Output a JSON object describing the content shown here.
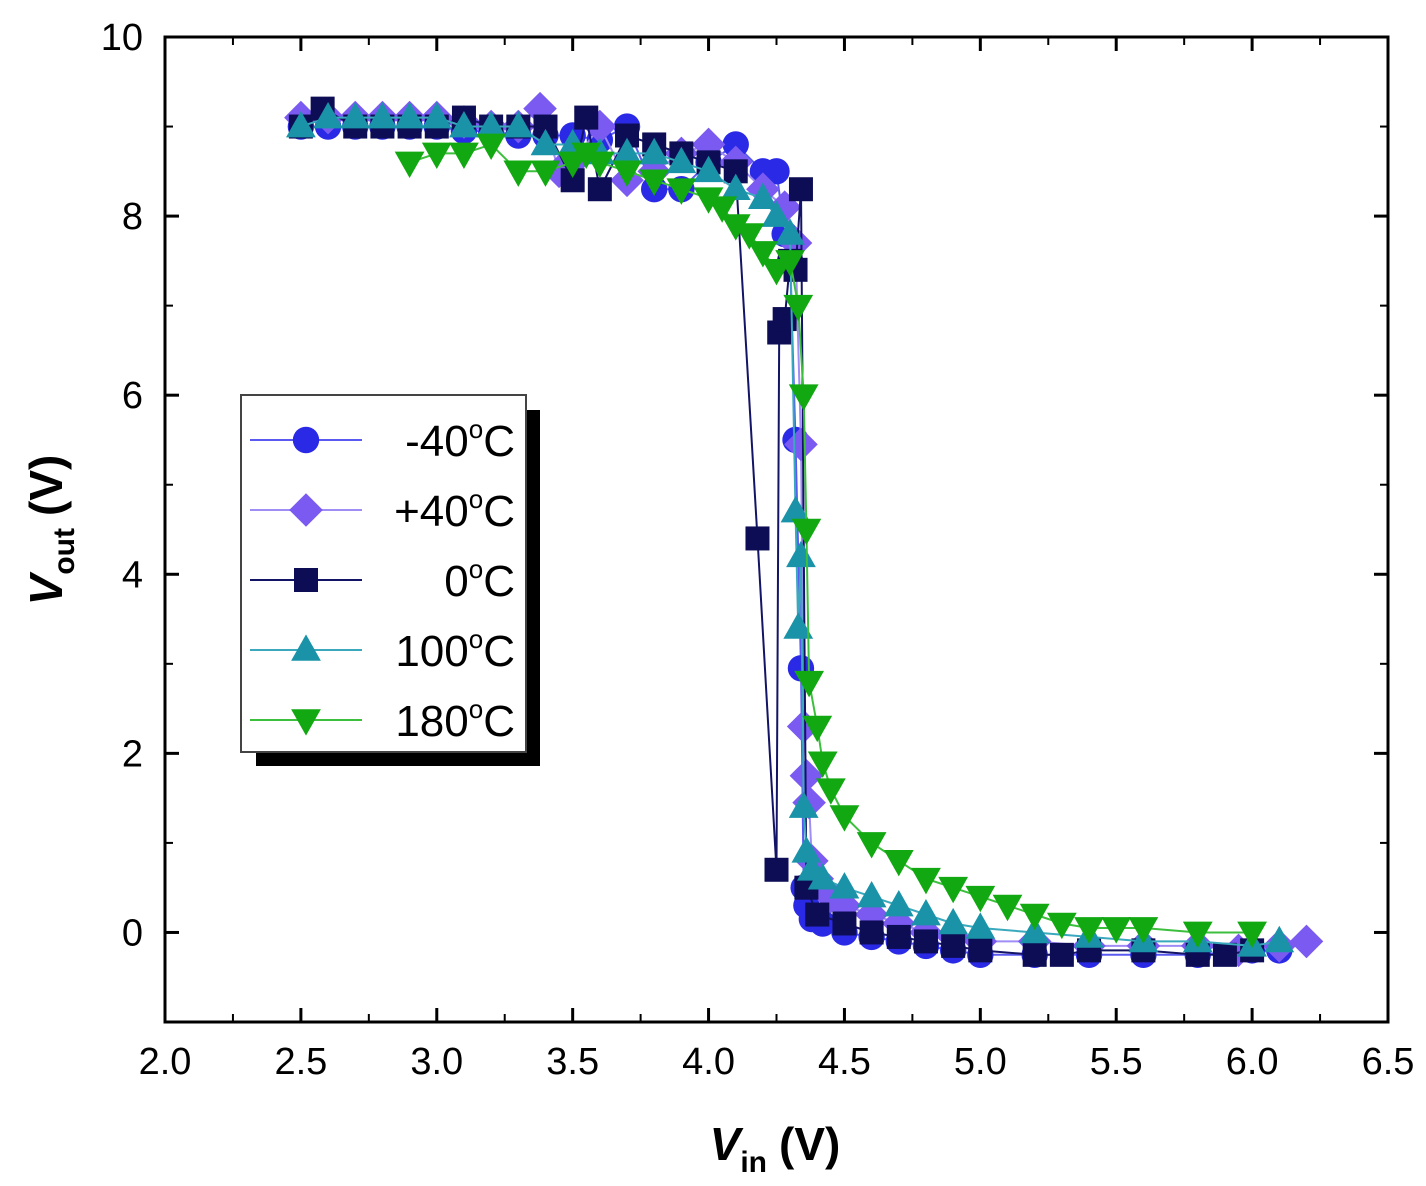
{
  "chart_data": {
    "type": "line",
    "title": "",
    "xlabel": {
      "main": "V",
      "sub": "in",
      "unit": "(V)"
    },
    "ylabel": {
      "main": "V",
      "sub": "out",
      "unit": "(V)"
    },
    "xlim": [
      2.0,
      6.5
    ],
    "ylim": [
      -1,
      10
    ],
    "x_ticks": [
      "2.0",
      "2.5",
      "3.0",
      "3.5",
      "4.0",
      "4.5",
      "5.0",
      "5.5",
      "6.0",
      "6.5"
    ],
    "y_ticks": [
      "0",
      "2",
      "4",
      "6",
      "8",
      "10"
    ],
    "legend_position": "middle-left",
    "series": [
      {
        "name": "-40°C",
        "label_main": "-40",
        "label_sup": "o",
        "label_unit": "C",
        "color": "#2a2ae6",
        "line_color": "#5a5af0",
        "marker": "circle",
        "x": [
          2.5,
          2.6,
          2.7,
          2.8,
          2.9,
          3.0,
          3.1,
          3.2,
          3.3,
          3.4,
          3.5,
          3.6,
          3.7,
          3.8,
          3.9,
          4.0,
          4.1,
          4.2,
          4.25,
          4.28,
          4.3,
          4.32,
          4.34,
          4.35,
          4.36,
          4.38,
          4.42,
          4.5,
          4.6,
          4.7,
          4.8,
          4.9,
          5.0,
          5.2,
          5.4,
          5.6,
          5.8,
          6.0,
          6.1
        ],
        "y": [
          9.0,
          9.0,
          9.0,
          9.0,
          9.0,
          9.0,
          8.95,
          8.95,
          8.9,
          8.9,
          8.9,
          8.85,
          9.0,
          8.3,
          8.3,
          8.6,
          8.8,
          8.5,
          8.5,
          7.8,
          7.5,
          5.5,
          2.95,
          0.5,
          0.3,
          0.15,
          0.1,
          0.0,
          -0.05,
          -0.1,
          -0.15,
          -0.2,
          -0.25,
          -0.25,
          -0.25,
          -0.25,
          -0.25,
          -0.2,
          -0.2
        ]
      },
      {
        "name": "+40°C",
        "label_main": "+40",
        "label_sup": "o",
        "label_unit": "C",
        "color": "#7a5af0",
        "line_color": "#a08cf5",
        "marker": "diamond",
        "x": [
          2.5,
          2.6,
          2.7,
          2.8,
          2.9,
          3.0,
          3.1,
          3.2,
          3.3,
          3.38,
          3.45,
          3.5,
          3.6,
          3.7,
          3.8,
          3.9,
          4.0,
          4.1,
          4.2,
          4.28,
          4.32,
          4.34,
          4.35,
          4.36,
          4.37,
          4.38,
          4.4,
          4.45,
          4.5,
          4.6,
          4.7,
          4.8,
          4.9,
          5.0,
          5.2,
          5.4,
          5.6,
          5.8,
          5.95,
          6.1,
          6.2
        ],
        "y": [
          9.1,
          9.1,
          9.1,
          9.1,
          9.1,
          9.1,
          9.05,
          9.0,
          9.0,
          9.2,
          8.5,
          8.6,
          9.0,
          8.4,
          8.5,
          8.7,
          8.8,
          8.6,
          8.3,
          8.1,
          7.7,
          5.45,
          2.3,
          1.75,
          1.45,
          0.8,
          0.6,
          0.4,
          0.3,
          0.2,
          0.1,
          0.0,
          -0.05,
          -0.1,
          -0.1,
          -0.15,
          -0.15,
          -0.15,
          -0.2,
          -0.15,
          -0.1
        ]
      },
      {
        "name": "0°C",
        "label_main": "0",
        "label_sup": "o",
        "label_unit": "C",
        "color": "#0d0d55",
        "line_color": "#141466",
        "marker": "square",
        "x": [
          2.5,
          2.58,
          2.7,
          2.8,
          2.9,
          3.0,
          3.1,
          3.2,
          3.3,
          3.4,
          3.5,
          3.55,
          3.6,
          3.7,
          3.8,
          3.9,
          4.0,
          4.1,
          4.18,
          4.25,
          4.26,
          4.28,
          4.3,
          4.32,
          4.34,
          4.36,
          4.4,
          4.5,
          4.6,
          4.7,
          4.8,
          4.9,
          5.0,
          5.2,
          5.3,
          5.4,
          5.6,
          5.8,
          5.9,
          6.0
        ],
        "y": [
          9.0,
          9.2,
          9.0,
          9.0,
          9.0,
          9.0,
          9.1,
          9.0,
          9.0,
          9.0,
          8.4,
          9.1,
          8.3,
          8.9,
          8.8,
          8.7,
          8.6,
          8.5,
          4.4,
          0.7,
          6.7,
          6.85,
          7.5,
          7.4,
          8.3,
          0.5,
          0.2,
          0.1,
          0.0,
          -0.05,
          -0.1,
          -0.15,
          -0.2,
          -0.25,
          -0.25,
          -0.2,
          -0.2,
          -0.25,
          -0.25,
          -0.2
        ]
      },
      {
        "name": "100°C",
        "label_main": "100",
        "label_sup": "o",
        "label_unit": "C",
        "color": "#1a93a8",
        "line_color": "#3aa8bd",
        "marker": "triangle-up",
        "x": [
          2.5,
          2.6,
          2.7,
          2.8,
          2.9,
          3.0,
          3.1,
          3.2,
          3.3,
          3.4,
          3.5,
          3.6,
          3.7,
          3.8,
          3.9,
          4.0,
          4.1,
          4.2,
          4.25,
          4.3,
          4.32,
          4.33,
          4.34,
          4.35,
          4.36,
          4.38,
          4.42,
          4.5,
          4.6,
          4.7,
          4.8,
          4.9,
          5.0,
          5.2,
          5.4,
          5.6,
          5.8,
          6.0,
          6.1
        ],
        "y": [
          9.0,
          9.1,
          9.1,
          9.1,
          9.1,
          9.1,
          9.0,
          9.0,
          9.0,
          8.8,
          8.8,
          8.7,
          8.7,
          8.7,
          8.6,
          8.5,
          8.3,
          8.2,
          8.0,
          7.8,
          4.7,
          3.4,
          4.2,
          1.4,
          0.9,
          0.7,
          0.6,
          0.5,
          0.4,
          0.3,
          0.2,
          0.1,
          0.05,
          0.0,
          -0.05,
          -0.1,
          -0.1,
          -0.15,
          -0.1
        ]
      },
      {
        "name": "180°C",
        "label_main": "180",
        "label_sup": "o",
        "label_unit": "C",
        "color": "#12a812",
        "line_color": "#3cbf3c",
        "marker": "triangle-down",
        "x": [
          2.9,
          3.0,
          3.1,
          3.2,
          3.3,
          3.4,
          3.5,
          3.55,
          3.6,
          3.7,
          3.8,
          3.9,
          4.0,
          4.05,
          4.1,
          4.15,
          4.2,
          4.25,
          4.3,
          4.33,
          4.35,
          4.36,
          4.37,
          4.4,
          4.42,
          4.45,
          4.5,
          4.6,
          4.7,
          4.8,
          4.9,
          5.0,
          5.1,
          5.2,
          5.3,
          5.4,
          5.5,
          5.6,
          5.8,
          6.0
        ],
        "y": [
          8.6,
          8.7,
          8.7,
          8.8,
          8.5,
          8.5,
          8.6,
          8.7,
          8.6,
          8.5,
          8.4,
          8.3,
          8.2,
          8.1,
          7.9,
          7.8,
          7.6,
          7.4,
          7.5,
          7.0,
          6.0,
          4.5,
          2.8,
          2.3,
          1.9,
          1.6,
          1.3,
          1.0,
          0.8,
          0.6,
          0.5,
          0.4,
          0.3,
          0.2,
          0.1,
          0.05,
          0.05,
          0.05,
          0.0,
          0.0
        ]
      }
    ]
  }
}
